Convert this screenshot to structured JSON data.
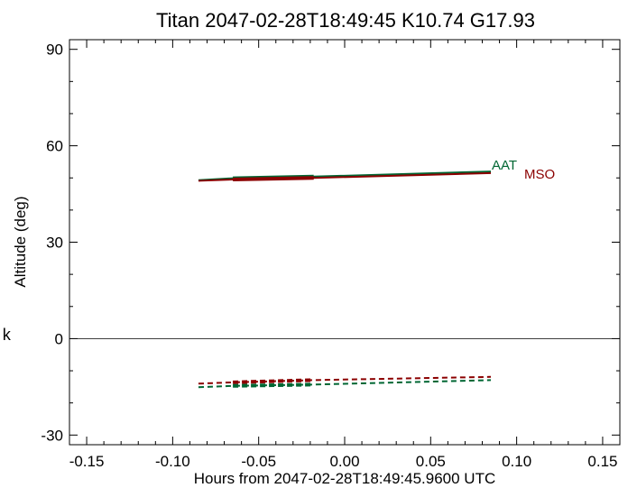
{
  "chart_data": {
    "type": "line",
    "title": "Titan 2047-02-28T18:49:45  K10.74  G17.93",
    "xlabel": "Hours from 2047-02-28T18:49:45.9600 UTC",
    "ylabel": "Altitude (deg)",
    "xlim": [
      -0.16,
      0.16
    ],
    "ylim": [
      -33,
      93
    ],
    "xticks": [
      -0.15,
      -0.1,
      -0.05,
      0.0,
      0.05,
      0.1,
      0.15
    ],
    "xtick_labels": [
      "-0.15",
      "-0.10",
      "-0.05",
      "0.00",
      "0.05",
      "0.10",
      "0.15"
    ],
    "yticks": [
      -30,
      0,
      30,
      60,
      90
    ],
    "ytick_labels": [
      "-30",
      "0",
      "30",
      "60",
      "90"
    ],
    "reference_line_y": 0,
    "grid": false,
    "margin_mark": "k",
    "series": [
      {
        "name": "AAT",
        "color": "#006633",
        "style": "solid",
        "x": [
          -0.085,
          -0.065,
          -0.018,
          0.085
        ],
        "y": [
          49.3,
          49.9,
          50.4,
          52.0
        ],
        "thick_segment_x": [
          -0.065,
          -0.018
        ]
      },
      {
        "name": "MSO",
        "color": "#8b0000",
        "style": "solid",
        "x": [
          -0.085,
          -0.065,
          -0.018,
          0.085
        ],
        "y": [
          49.1,
          49.5,
          50.0,
          51.5
        ],
        "thick_segment_x": [
          -0.065,
          -0.018
        ]
      },
      {
        "name": "",
        "color": "#8b0000",
        "style": "dashed",
        "x": [
          -0.085,
          -0.065,
          -0.018,
          0.085
        ],
        "y": [
          -14.0,
          -13.6,
          -12.9,
          -11.9
        ],
        "thick_segment_x": [
          -0.065,
          -0.018
        ]
      },
      {
        "name": "",
        "color": "#006633",
        "style": "dashed",
        "x": [
          -0.085,
          -0.065,
          -0.018,
          0.085
        ],
        "y": [
          -15.1,
          -14.7,
          -14.3,
          -12.9
        ],
        "thick_segment_x": [
          -0.065,
          -0.018
        ]
      }
    ]
  }
}
